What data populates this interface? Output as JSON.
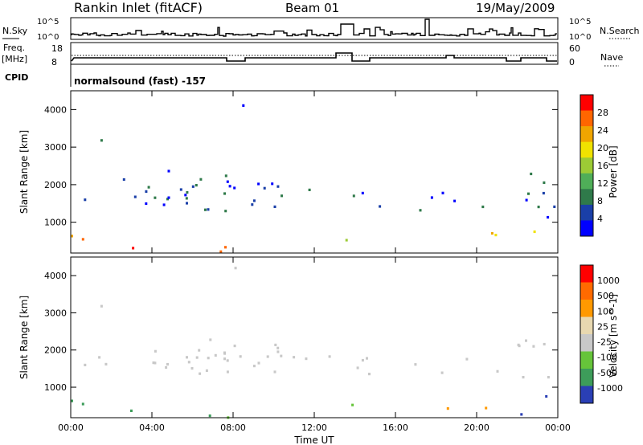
{
  "header": {
    "station": "Rankin Inlet (fitACF)",
    "beam": "Beam 01",
    "date": "19/May/2009"
  },
  "panels": {
    "nsky": {
      "left_label": "N.Sky",
      "left_ticks": [
        "10^5",
        "10^0"
      ],
      "right_ticks": [
        "10^5",
        "10^0"
      ],
      "right_label": "N.Search"
    },
    "freq": {
      "left_label_1": "Freq.",
      "left_label_2": "[MHz]",
      "left_ticks": [
        "18",
        "8"
      ],
      "right_ticks": [
        "60",
        "0"
      ],
      "right_label": "Nave"
    },
    "cpid": {
      "label": "CPID",
      "text": "normalsound (fast) -157"
    }
  },
  "colors": {
    "power": [
      "#0000ff",
      "#1a3fa8",
      "#2f7a4a",
      "#4fae58",
      "#9ccb35",
      "#f0e200",
      "#f0a500",
      "#ff6600",
      "#ff0000"
    ],
    "velocity": [
      "#2a3fb5",
      "#3d9c5a",
      "#66c43a",
      "#c8c8c8",
      "#e8d8b0",
      "#ff9900",
      "#ff6a00",
      "#ff0000"
    ]
  },
  "chart_data": [
    {
      "type": "heatmap",
      "quantity": "Power",
      "ylabel": "Slant Range [km]",
      "yticks": [
        1000,
        2000,
        3000,
        4000
      ],
      "ylim": [
        180,
        4500
      ],
      "xticks": [
        "00:00",
        "04:00",
        "08:00",
        "12:00",
        "16:00",
        "20:00",
        "00:00"
      ],
      "xlim": [
        0,
        24
      ],
      "colorbar": {
        "label": "Power [dB]",
        "ticks": [
          "28",
          "24",
          "20",
          "16",
          "12",
          "8",
          "4"
        ]
      }
    },
    {
      "type": "heatmap",
      "quantity": "Velocity",
      "ylabel": "Slant Range [km]",
      "yticks": [
        1000,
        2000,
        3000,
        4000
      ],
      "ylim": [
        180,
        4500
      ],
      "xticks": [
        "00:00",
        "04:00",
        "08:00",
        "12:00",
        "16:00",
        "20:00",
        "00:00"
      ],
      "xlim": [
        0,
        24
      ],
      "xlabel": "Time UT",
      "colorbar": {
        "label": "Velocity [m s^-1]",
        "ticks": [
          "1000",
          "500",
          "100",
          "25",
          "-25",
          "-100",
          "-500",
          "-1000"
        ]
      }
    }
  ]
}
